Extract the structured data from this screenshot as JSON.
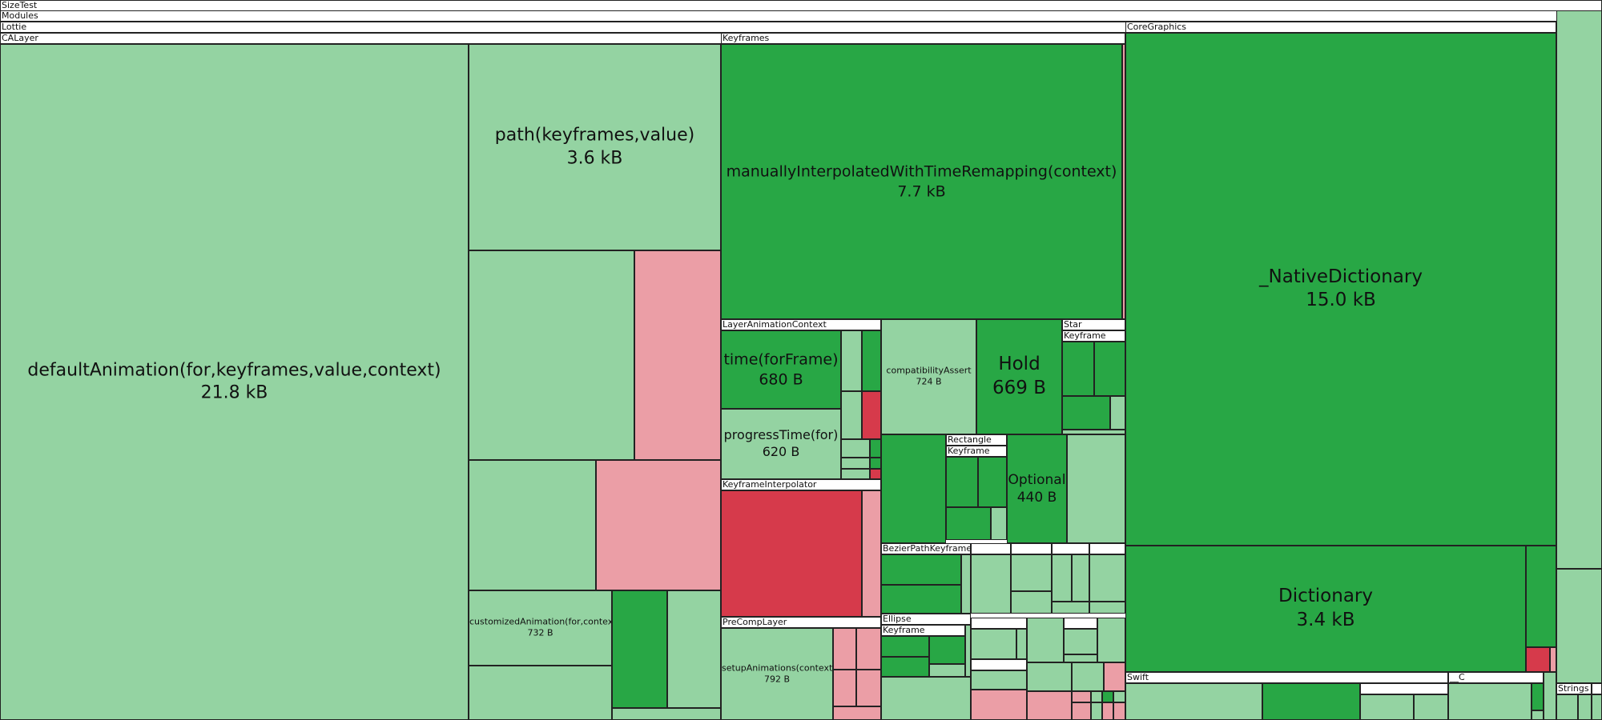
{
  "chart_data": {
    "type": "treemap",
    "title": "SizeTest",
    "hierarchy": [
      "SizeTest",
      "Modules",
      "Lottie",
      "CALayer"
    ],
    "groups": [
      "Keyframes",
      "CoreGraphics",
      "LayerAnimationContext",
      "KeyframeInterpolator",
      "PreCompLayer",
      "Star",
      "Keyframe",
      "Rectangle",
      "BezierPathKeyframe",
      "Ellipse",
      "Swift",
      "__C",
      "Strings"
    ],
    "nodes": [
      {
        "name": "defaultAnimation(for,keyframes,value,context)",
        "size": "21.8 kB",
        "bytes": 21800
      },
      {
        "name": "_NativeDictionary",
        "size": "15.0 kB",
        "bytes": 15000
      },
      {
        "name": "manuallyInterpolatedWithTimeRemapping(context)",
        "size": "7.7 kB",
        "bytes": 7700
      },
      {
        "name": "path(keyframes,value)",
        "size": "3.6 kB",
        "bytes": 3600
      },
      {
        "name": "Dictionary",
        "size": "3.4 kB",
        "bytes": 3400
      },
      {
        "name": "setupAnimations(context)",
        "size": "792 B",
        "bytes": 792
      },
      {
        "name": "customizedAnimation(for,context)",
        "size": "732 B",
        "bytes": 732
      },
      {
        "name": "compatibilityAssert",
        "size": "724 B",
        "bytes": 724
      },
      {
        "name": "time(forFrame)",
        "size": "680 B",
        "bytes": 680
      },
      {
        "name": "Hold",
        "size": "669 B",
        "bytes": 669
      },
      {
        "name": "progressTime(for)",
        "size": "620 B",
        "bytes": 620
      },
      {
        "name": "Optional",
        "size": "440 B",
        "bytes": 440
      }
    ],
    "colors": {
      "light_green": "#94d3a2",
      "green": "#28a745",
      "pink": "#eb9ea6",
      "red": "#d63a4b"
    }
  }
}
